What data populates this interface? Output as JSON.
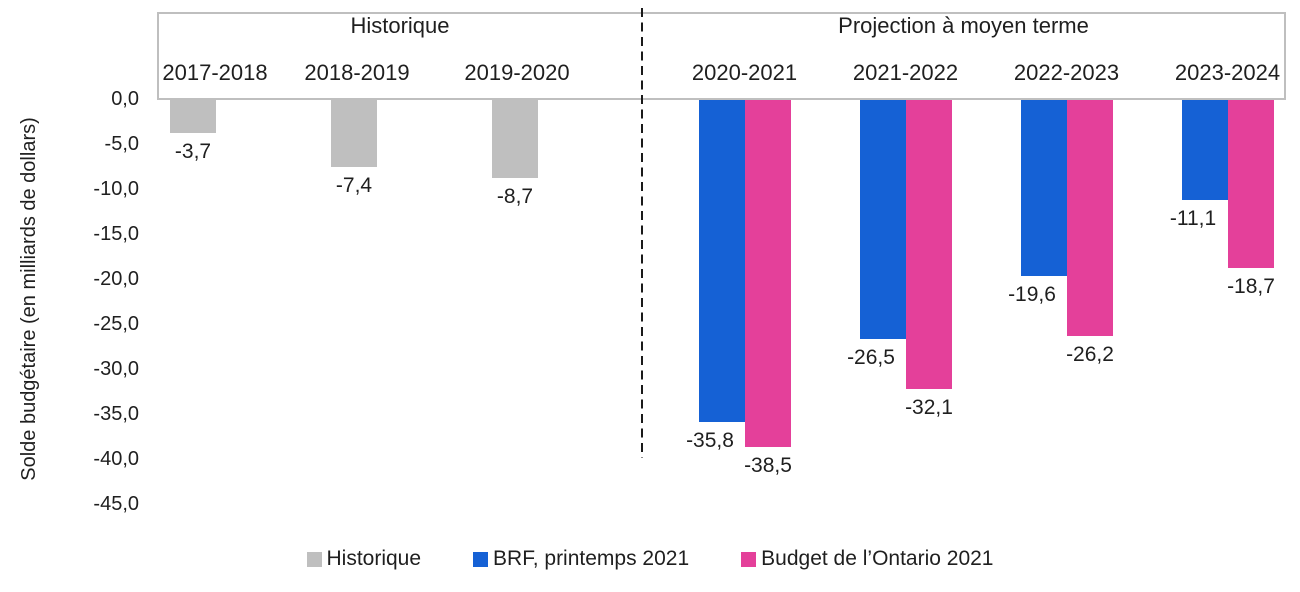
{
  "chart_data": {
    "type": "bar",
    "title": "",
    "ylabel": "Solde budgétaire (en milliards de dollars)",
    "xlabel": "",
    "sections": [
      {
        "label": "Historique",
        "category_indexes": [
          0,
          1,
          2
        ]
      },
      {
        "label": "Projection à moyen terme",
        "category_indexes": [
          3,
          4,
          5,
          6
        ]
      }
    ],
    "divider_after_category_index": 2,
    "categories": [
      "2017-2018",
      "2018-2019",
      "2019-2020",
      "2020-2021",
      "2021-2022",
      "2022-2023",
      "2023-2024"
    ],
    "series": [
      {
        "name": "Historique",
        "color": "#bfbfbf",
        "values": [
          -3.7,
          -7.4,
          -8.7,
          null,
          null,
          null,
          null
        ],
        "value_labels": [
          "-3,7",
          "-7,4",
          "-8,7",
          null,
          null,
          null,
          null
        ]
      },
      {
        "name": "BRF, printemps 2021",
        "color": "#1561d5",
        "values": [
          null,
          null,
          null,
          -35.8,
          -26.5,
          -19.6,
          -11.1
        ],
        "value_labels": [
          null,
          null,
          null,
          "-35,8",
          "-26,5",
          "-19,6",
          "-11,1"
        ]
      },
      {
        "name": "Budget de l’Ontario 2021",
        "color": "#e4409a",
        "values": [
          null,
          null,
          null,
          -38.5,
          -32.1,
          -26.2,
          -18.7
        ],
        "value_labels": [
          null,
          null,
          null,
          "-38,5",
          "-32,1",
          "-26,2",
          "-18,7"
        ]
      }
    ],
    "y_ticks": [
      "0,0",
      "-5,0",
      "-10,0",
      "-15,0",
      "-20,0",
      "-25,0",
      "-30,0",
      "-35,0",
      "-40,0",
      "-45,0"
    ],
    "ylim": [
      0,
      -45
    ],
    "ytick_interval": 5,
    "grid": false,
    "legend_position": "bottom"
  },
  "colors": {
    "plot_frame": "#bfbfbf",
    "divider_line": "#1a1a1a",
    "text": "#1f1f1f",
    "background": "#ffffff"
  }
}
